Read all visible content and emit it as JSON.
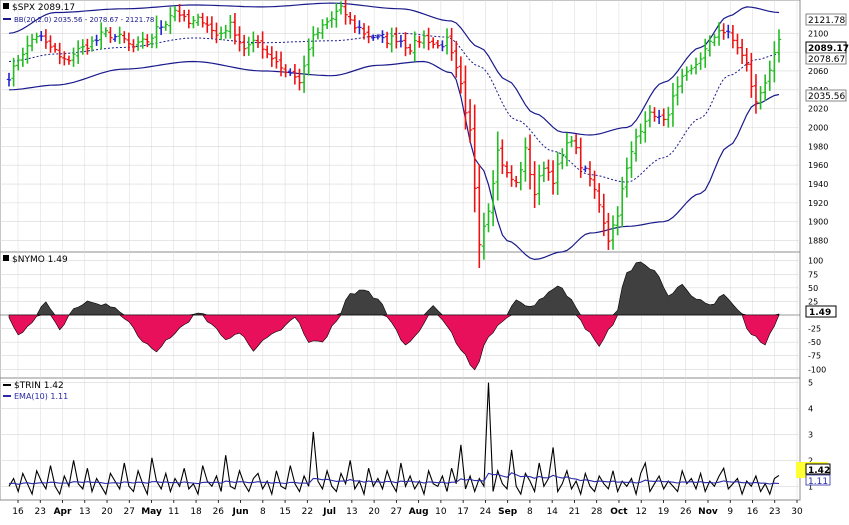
{
  "price_panel": {
    "title": "$SPX 2089.17",
    "bb_label": "BB(20,2.0) 2035.56 - 2078.67 - 2121.78",
    "badges": [
      {
        "value": "2121.78",
        "style": "plain"
      },
      {
        "value": "2089.17",
        "style": "bold"
      },
      {
        "value": "2078.67",
        "style": "plain"
      },
      {
        "value": "2035.56",
        "style": "plain"
      }
    ],
    "y_ticks": [
      "1880",
      "1900",
      "1920",
      "1940",
      "1960",
      "1980",
      "2000",
      "2020",
      "2040",
      "2060",
      "2080",
      "2100"
    ]
  },
  "nymo_panel": {
    "title": "$NYMO 1.49",
    "badge": "1.49",
    "y_ticks": [
      "100",
      "75",
      "50",
      "25",
      "-25",
      "-50",
      "-75",
      "-100"
    ]
  },
  "trin_panel": {
    "title": "$TRIN 1.42",
    "ema_label": "EMA(10) 1.11",
    "badge_trin": "1.42",
    "badge_ema": "1.11",
    "y_ticks": [
      "1",
      "2",
      "3",
      "4",
      "5"
    ]
  },
  "x_axis": {
    "labels": [
      {
        "text": "16",
        "bold": false
      },
      {
        "text": "23",
        "bold": false
      },
      {
        "text": "Apr",
        "bold": true
      },
      {
        "text": "13",
        "bold": false
      },
      {
        "text": "20",
        "bold": false
      },
      {
        "text": "27",
        "bold": false
      },
      {
        "text": "May",
        "bold": true
      },
      {
        "text": "11",
        "bold": false
      },
      {
        "text": "18",
        "bold": false
      },
      {
        "text": "26",
        "bold": false
      },
      {
        "text": "Jun",
        "bold": true
      },
      {
        "text": "8",
        "bold": false
      },
      {
        "text": "15",
        "bold": false
      },
      {
        "text": "22",
        "bold": false
      },
      {
        "text": "Jul",
        "bold": true
      },
      {
        "text": "13",
        "bold": false
      },
      {
        "text": "20",
        "bold": false
      },
      {
        "text": "27",
        "bold": false
      },
      {
        "text": "Aug",
        "bold": true
      },
      {
        "text": "10",
        "bold": false
      },
      {
        "text": "17",
        "bold": false
      },
      {
        "text": "24",
        "bold": false
      },
      {
        "text": "Sep",
        "bold": true
      },
      {
        "text": "8",
        "bold": false
      },
      {
        "text": "14",
        "bold": false
      },
      {
        "text": "21",
        "bold": false
      },
      {
        "text": "28",
        "bold": false
      },
      {
        "text": "Oct",
        "bold": true
      },
      {
        "text": "12",
        "bold": false
      },
      {
        "text": "19",
        "bold": false
      },
      {
        "text": "26",
        "bold": false
      },
      {
        "text": "Nov",
        "bold": true
      },
      {
        "text": "9",
        "bold": false
      },
      {
        "text": "16",
        "bold": false
      },
      {
        "text": "23",
        "bold": false
      },
      {
        "text": "30",
        "bold": false
      }
    ]
  },
  "colors": {
    "up_bar": "#22bb22",
    "down_bar": "#ee1111",
    "neutral_bar": "#2222cc",
    "band": "#1a1a8c",
    "positive_fill": "#404040",
    "negative_fill": "#e8105a",
    "trin_line": "#000000",
    "ema_line": "#2a2aa8",
    "highlight": "#ffff33",
    "grid": "#d8d8d8"
  },
  "chart_data": [
    {
      "type": "ohlc",
      "title": "$SPX 2089.17",
      "ylim": [
        1870,
        2130
      ],
      "grid": true,
      "x_range": [
        "Mar 16",
        "Nov 30"
      ],
      "anchors": [
        [
          0,
          2055
        ],
        [
          3,
          2080
        ],
        [
          6,
          2098
        ],
        [
          9,
          2085
        ],
        [
          12,
          2070
        ],
        [
          15,
          2082
        ],
        [
          18,
          2090
        ],
        [
          21,
          2100
        ],
        [
          24,
          2095
        ],
        [
          27,
          2085
        ],
        [
          30,
          2092
        ],
        [
          33,
          2108
        ],
        [
          36,
          2125
        ],
        [
          39,
          2110
        ],
        [
          42,
          2115
        ],
        [
          45,
          2098
        ],
        [
          48,
          2108
        ],
        [
          51,
          2085
        ],
        [
          54,
          2090
        ],
        [
          57,
          2075
        ],
        [
          60,
          2060
        ],
        [
          63,
          2050
        ],
        [
          66,
          2095
        ],
        [
          69,
          2112
        ],
        [
          72,
          2125
        ],
        [
          75,
          2108
        ],
        [
          78,
          2098
        ],
        [
          81,
          2092
        ],
        [
          84,
          2095
        ],
        [
          87,
          2085
        ],
        [
          90,
          2096
        ],
        [
          93,
          2086
        ],
        [
          95,
          2092
        ],
        [
          97,
          2060
        ],
        [
          100,
          1995
        ],
        [
          102,
          1880
        ],
        [
          104,
          1915
        ],
        [
          106,
          1975
        ],
        [
          108,
          1950
        ],
        [
          110,
          1940
        ],
        [
          112,
          1975
        ],
        [
          114,
          1930
        ],
        [
          116,
          1960
        ],
        [
          118,
          1945
        ],
        [
          120,
          1970
        ],
        [
          122,
          1990
        ],
        [
          124,
          1960
        ],
        [
          126,
          1945
        ],
        [
          128,
          1920
        ],
        [
          130,
          1882
        ],
        [
          132,
          1910
        ],
        [
          134,
          1955
        ],
        [
          136,
          1990
        ],
        [
          138,
          2010
        ],
        [
          140,
          2015
        ],
        [
          142,
          2005
        ],
        [
          144,
          2030
        ],
        [
          146,
          2050
        ],
        [
          148,
          2060
        ],
        [
          150,
          2075
        ],
        [
          152,
          2088
        ],
        [
          154,
          2105
        ],
        [
          156,
          2098
        ],
        [
          158,
          2086
        ],
        [
          160,
          2065
        ],
        [
          162,
          2025
        ],
        [
          164,
          2050
        ],
        [
          166,
          2075
        ],
        [
          167,
          2089
        ]
      ],
      "upper_band": [
        [
          0,
          2100
        ],
        [
          10,
          2122
        ],
        [
          25,
          2126
        ],
        [
          40,
          2130
        ],
        [
          55,
          2128
        ],
        [
          70,
          2132
        ],
        [
          85,
          2126
        ],
        [
          96,
          2113
        ],
        [
          102,
          2085
        ],
        [
          108,
          2050
        ],
        [
          114,
          2015
        ],
        [
          120,
          1995
        ],
        [
          126,
          1992
        ],
        [
          134,
          2000
        ],
        [
          142,
          2048
        ],
        [
          150,
          2085
        ],
        [
          156,
          2118
        ],
        [
          160,
          2128
        ],
        [
          167,
          2122
        ]
      ],
      "middle_band": [
        [
          0,
          2070
        ],
        [
          10,
          2078
        ],
        [
          25,
          2085
        ],
        [
          40,
          2095
        ],
        [
          55,
          2090
        ],
        [
          70,
          2092
        ],
        [
          85,
          2100
        ],
        [
          95,
          2096
        ],
        [
          102,
          2065
        ],
        [
          110,
          2008
        ],
        [
          118,
          1975
        ],
        [
          126,
          1950
        ],
        [
          134,
          1942
        ],
        [
          142,
          1968
        ],
        [
          150,
          2010
        ],
        [
          156,
          2055
        ],
        [
          162,
          2072
        ],
        [
          167,
          2078
        ]
      ],
      "lower_band": [
        [
          0,
          2040
        ],
        [
          10,
          2045
        ],
        [
          25,
          2062
        ],
        [
          40,
          2070
        ],
        [
          55,
          2060
        ],
        [
          70,
          2055
        ],
        [
          80,
          2066
        ],
        [
          90,
          2070
        ],
        [
          96,
          2058
        ],
        [
          102,
          1960
        ],
        [
          108,
          1880
        ],
        [
          114,
          1860
        ],
        [
          120,
          1868
        ],
        [
          126,
          1888
        ],
        [
          134,
          1895
        ],
        [
          142,
          1900
        ],
        [
          150,
          1930
        ],
        [
          156,
          1980
        ],
        [
          162,
          2025
        ],
        [
          167,
          2035
        ]
      ]
    },
    {
      "type": "area",
      "title": "$NYMO 1.49",
      "ylim": [
        -105,
        105
      ],
      "grid": true,
      "baseline": 0,
      "anchors": [
        [
          0,
          -5
        ],
        [
          2,
          -35
        ],
        [
          5,
          -15
        ],
        [
          8,
          25
        ],
        [
          11,
          -25
        ],
        [
          14,
          12
        ],
        [
          17,
          25
        ],
        [
          20,
          20
        ],
        [
          23,
          15
        ],
        [
          26,
          -12
        ],
        [
          29,
          -50
        ],
        [
          32,
          -68
        ],
        [
          35,
          -40
        ],
        [
          38,
          -20
        ],
        [
          41,
          5
        ],
        [
          44,
          -15
        ],
        [
          47,
          -48
        ],
        [
          50,
          -32
        ],
        [
          53,
          -65
        ],
        [
          56,
          -42
        ],
        [
          59,
          -25
        ],
        [
          62,
          -5
        ],
        [
          65,
          -48
        ],
        [
          68,
          -52
        ],
        [
          71,
          -10
        ],
        [
          74,
          40
        ],
        [
          77,
          45
        ],
        [
          80,
          28
        ],
        [
          83,
          -15
        ],
        [
          86,
          -55
        ],
        [
          89,
          -30
        ],
        [
          92,
          20
        ],
        [
          95,
          -20
        ],
        [
          98,
          -62
        ],
        [
          101,
          -102
        ],
        [
          104,
          -40
        ],
        [
          107,
          -15
        ],
        [
          110,
          25
        ],
        [
          113,
          15
        ],
        [
          116,
          35
        ],
        [
          119,
          55
        ],
        [
          122,
          30
        ],
        [
          125,
          -25
        ],
        [
          128,
          -55
        ],
        [
          131,
          -20
        ],
        [
          134,
          80
        ],
        [
          137,
          98
        ],
        [
          140,
          80
        ],
        [
          143,
          38
        ],
        [
          146,
          55
        ],
        [
          149,
          30
        ],
        [
          152,
          18
        ],
        [
          155,
          35
        ],
        [
          158,
          12
        ],
        [
          161,
          -35
        ],
        [
          164,
          -55
        ],
        [
          166,
          -20
        ],
        [
          167,
          1.49
        ]
      ]
    },
    {
      "type": "line",
      "title": "$TRIN 1.42",
      "ylim": [
        0.55,
        5.1
      ],
      "grid": true,
      "series": [
        {
          "name": "$TRIN",
          "values": [
            1.0,
            1.3,
            0.8,
            1.5,
            1.1,
            0.7,
            1.6,
            1.2,
            0.9,
            1.8,
            1.0,
            0.7,
            1.4,
            1.0,
            2.0,
            1.1,
            0.9,
            1.7,
            0.8,
            1.3,
            1.0,
            0.7,
            1.5,
            1.2,
            0.9,
            1.9,
            1.0,
            0.8,
            1.6,
            1.1,
            0.7,
            2.1,
            1.2,
            0.9,
            1.5,
            0.8,
            1.3,
            1.0,
            1.7,
            0.9,
            1.1,
            0.7,
            1.8,
            1.2,
            1.0,
            1.4,
            0.8,
            2.2,
            1.0,
            0.9,
            1.6,
            1.1,
            0.8,
            1.3,
            1.5,
            0.9,
            1.2,
            0.7,
            1.6,
            1.0,
            0.9,
            1.8,
            1.1,
            0.8,
            1.4,
            1.0,
            3.1,
            1.2,
            0.9,
            1.6,
            1.0,
            0.8,
            1.5,
            1.1,
            2.0,
            0.9,
            1.2,
            0.7,
            1.7,
            1.0,
            1.3,
            0.9,
            1.6,
            1.1,
            0.8,
            1.9,
            1.0,
            1.4,
            0.9,
            1.2,
            0.7,
            1.6,
            1.1,
            1.0,
            1.4,
            0.8,
            1.7,
            1.1,
            2.6,
            0.9,
            1.4,
            0.8,
            1.3,
            1.0,
            5.0,
            0.8,
            1.6,
            1.1,
            0.9,
            2.4,
            1.0,
            0.7,
            1.5,
            1.2,
            0.8,
            1.9,
            1.0,
            1.3,
            2.5,
            0.8,
            1.1,
            1.6,
            0.9,
            1.2,
            0.7,
            1.5,
            1.0,
            0.8,
            1.4,
            1.1,
            0.9,
            1.6,
            0.8,
            1.2,
            1.0,
            1.3,
            0.7,
            1.5,
            1.9,
            0.8,
            1.1,
            1.4,
            0.9,
            1.2,
            1.0,
            0.8,
            1.6,
            1.1,
            1.3,
            0.9,
            1.5,
            0.8,
            1.2,
            1.0,
            1.4,
            1.7,
            0.9,
            1.1,
            1.3,
            0.7,
            1.2,
            1.0,
            1.4,
            0.8,
            1.1,
            0.7,
            1.3,
            1.42
          ]
        },
        {
          "name": "EMA(10)",
          "values": [
            1.1,
            1.12,
            1.08,
            1.12,
            1.14,
            1.1,
            1.12,
            1.14,
            1.13,
            1.16,
            1.15,
            1.12,
            1.13,
            1.12,
            1.18,
            1.17,
            1.15,
            1.18,
            1.15,
            1.16,
            1.14,
            1.11,
            1.13,
            1.14,
            1.12,
            1.17,
            1.15,
            1.13,
            1.16,
            1.15,
            1.12,
            1.18,
            1.18,
            1.15,
            1.17,
            1.14,
            1.15,
            1.13,
            1.17,
            1.14,
            1.13,
            1.1,
            1.15,
            1.16,
            1.14,
            1.16,
            1.12,
            1.2,
            1.18,
            1.15,
            1.18,
            1.17,
            1.14,
            1.15,
            1.18,
            1.15,
            1.16,
            1.12,
            1.15,
            1.13,
            1.11,
            1.15,
            1.15,
            1.12,
            1.13,
            1.11,
            1.3,
            1.29,
            1.25,
            1.27,
            1.23,
            1.19,
            1.2,
            1.2,
            1.26,
            1.21,
            1.21,
            1.16,
            1.2,
            1.17,
            1.18,
            1.15,
            1.19,
            1.18,
            1.14,
            1.2,
            1.18,
            1.2,
            1.17,
            1.17,
            1.13,
            1.17,
            1.16,
            1.14,
            1.16,
            1.12,
            1.16,
            1.16,
            1.29,
            1.24,
            1.27,
            1.22,
            1.23,
            1.2,
            1.5,
            1.45,
            1.46,
            1.4,
            1.35,
            1.52,
            1.45,
            1.37,
            1.39,
            1.37,
            1.31,
            1.38,
            1.33,
            1.33,
            1.42,
            1.36,
            1.32,
            1.36,
            1.3,
            1.28,
            1.22,
            1.25,
            1.22,
            1.18,
            1.2,
            1.19,
            1.17,
            1.2,
            1.16,
            1.17,
            1.15,
            1.17,
            1.13,
            1.16,
            1.24,
            1.2,
            1.19,
            1.21,
            1.18,
            1.18,
            1.16,
            1.13,
            1.17,
            1.16,
            1.18,
            1.15,
            1.18,
            1.14,
            1.15,
            1.13,
            1.16,
            1.21,
            1.18,
            1.16,
            1.18,
            1.14,
            1.14,
            1.12,
            1.15,
            1.12,
            1.12,
            1.09,
            1.12,
            1.11
          ]
        }
      ]
    }
  ]
}
